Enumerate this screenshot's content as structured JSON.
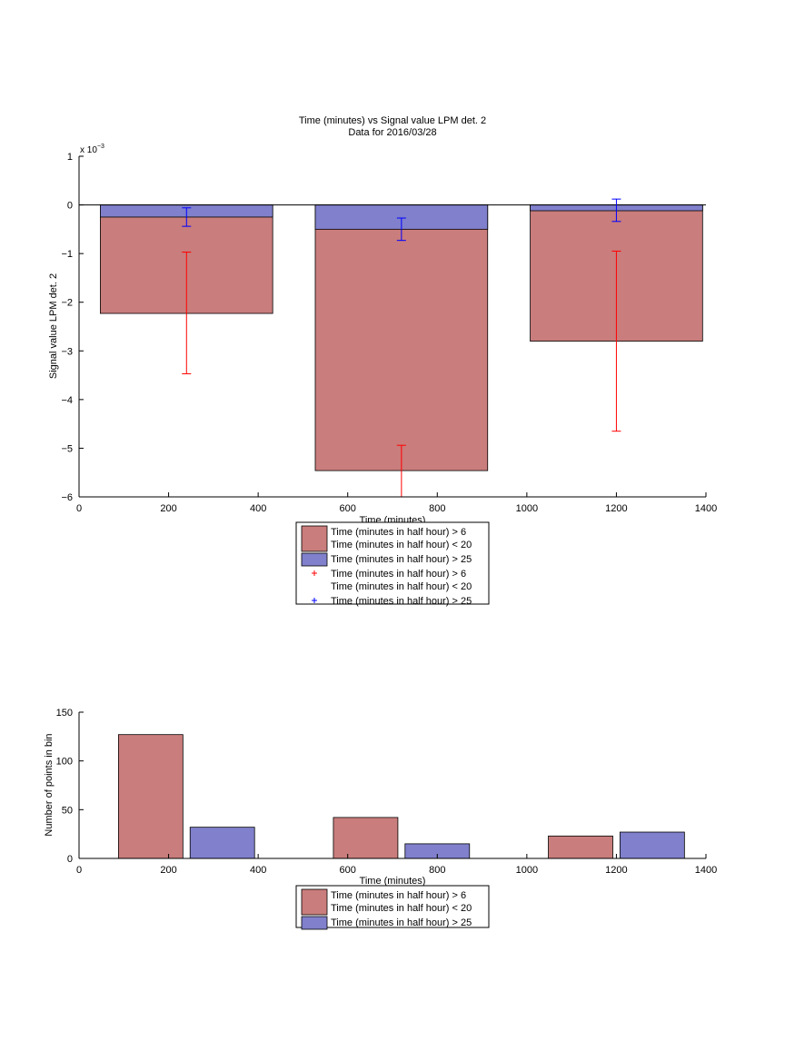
{
  "chart_data": [
    {
      "type": "bar",
      "title": "Time (minutes) vs Signal value LPM det. 2",
      "subtitle": "Data for 2016/03/28",
      "xlabel": "Time (minutes)",
      "ylabel": "Signal value LPM det. 2",
      "scale_label": "x 10",
      "scale_exponent": "−3",
      "xlim": [
        0,
        1400
      ],
      "ylim": [
        -0.006,
        0.001
      ],
      "xticks": [
        0,
        200,
        400,
        600,
        800,
        1000,
        1200,
        1400
      ],
      "xtick_labels": [
        "0",
        "200",
        "400",
        "600",
        "800",
        "1000",
        "1200",
        "1400"
      ],
      "yticks": [
        0.001,
        0,
        -0.001,
        -0.002,
        -0.003,
        -0.004,
        -0.005,
        -0.006
      ],
      "ytick_labels": [
        "1",
        "0",
        "−1",
        "−2",
        "−3",
        "−4",
        "−5",
        "−6"
      ],
      "bar_width": 385,
      "x": [
        240,
        720,
        1200
      ],
      "series": [
        {
          "name": "Time (minutes in half hour) > 6\nTime (minutes in half hour) < 20",
          "color": "#c97d7c",
          "values": [
            -0.00223,
            -0.00546,
            -0.0028
          ],
          "err_center": [
            -0.00222,
            -0.00547,
            -0.0028
          ],
          "err": [
            0.00125,
            0.00053,
            0.00185
          ],
          "err_color": "#ff0000"
        },
        {
          "name": "Time (minutes in half hour) > 25",
          "color": "#8080cc",
          "values": [
            -0.00025,
            -0.0005,
            -0.00012
          ],
          "err_center": [
            -0.00025,
            -0.0005,
            -0.00011
          ],
          "err": [
            0.00019,
            0.00023,
            0.00023
          ],
          "err_color": "#0000ff"
        }
      ],
      "legend": {
        "placement": "below",
        "entries": [
          {
            "kind": "patch",
            "color": "#c97d7c",
            "lines": [
              "Time (minutes in half hour) > 6",
              "Time (minutes in half hour) < 20"
            ]
          },
          {
            "kind": "patch",
            "color": "#8080cc",
            "lines": [
              "Time (minutes in half hour) > 25"
            ]
          },
          {
            "kind": "marker",
            "color": "#ff0000",
            "lines": [
              "Time (minutes in half hour) > 6",
              "Time (minutes in half hour) < 20"
            ]
          },
          {
            "kind": "marker",
            "color": "#0000ff",
            "lines": [
              "Time (minutes in half hour) > 25"
            ]
          }
        ]
      }
    },
    {
      "type": "bar",
      "title": "",
      "xlabel": "Time (minutes)",
      "ylabel": "Number of points in bin",
      "xlim": [
        0,
        1400
      ],
      "ylim": [
        0,
        150
      ],
      "xticks": [
        0,
        200,
        400,
        600,
        800,
        1000,
        1200,
        1400
      ],
      "xtick_labels": [
        "0",
        "200",
        "400",
        "600",
        "800",
        "1000",
        "1200",
        "1400"
      ],
      "yticks": [
        0,
        50,
        100,
        150
      ],
      "ytick_labels": [
        "0",
        "50",
        "100",
        "150"
      ],
      "bar_width": 144,
      "series": [
        {
          "name": "Time (minutes in half hour) > 6\nTime (minutes in half hour) < 20",
          "color": "#c97d7c",
          "x": [
            160,
            640,
            1120
          ],
          "values": [
            127,
            42,
            23
          ]
        },
        {
          "name": "Time (minutes in half hour) > 25",
          "color": "#8080cc",
          "x": [
            320,
            800,
            1280
          ],
          "values": [
            32,
            15,
            27
          ]
        }
      ],
      "legend": {
        "placement": "below",
        "entries": [
          {
            "kind": "patch",
            "color": "#c97d7c",
            "lines": [
              "Time (minutes in half hour) > 6",
              "Time (minutes in half hour) < 20"
            ]
          },
          {
            "kind": "patch",
            "color": "#8080cc",
            "lines": [
              "Time (minutes in half hour) > 25"
            ]
          }
        ]
      }
    }
  ]
}
